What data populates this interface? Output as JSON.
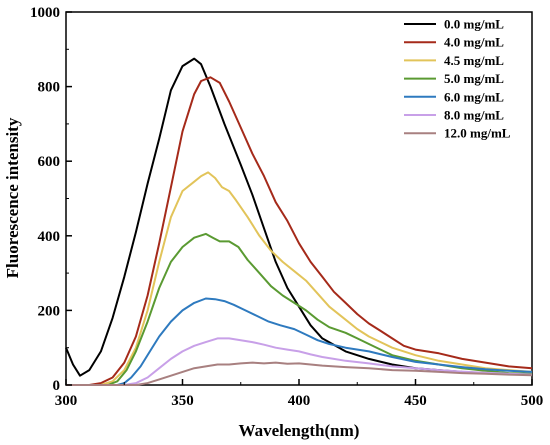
{
  "chart_data": {
    "type": "line",
    "title": "",
    "xlabel": "Wavelength(nm)",
    "ylabel": "Fluorescence intensity",
    "xlim": [
      300,
      500
    ],
    "ylim": [
      0,
      1000
    ],
    "xticks": [
      "300",
      "350",
      "400",
      "450",
      "500"
    ],
    "yticks": [
      "0",
      "200",
      "400",
      "600",
      "800",
      "1000"
    ],
    "grid": false,
    "legend_position": "top-right",
    "series": [
      {
        "name": "0.0 mg/mL",
        "color": "#000000",
        "points": [
          [
            300,
            100
          ],
          [
            303,
            55
          ],
          [
            306,
            25
          ],
          [
            310,
            40
          ],
          [
            315,
            90
          ],
          [
            320,
            180
          ],
          [
            325,
            290
          ],
          [
            330,
            410
          ],
          [
            335,
            540
          ],
          [
            340,
            660
          ],
          [
            345,
            790
          ],
          [
            350,
            855
          ],
          [
            355,
            875
          ],
          [
            358,
            860
          ],
          [
            362,
            800
          ],
          [
            368,
            700
          ],
          [
            375,
            590
          ],
          [
            380,
            510
          ],
          [
            385,
            420
          ],
          [
            390,
            330
          ],
          [
            395,
            260
          ],
          [
            400,
            210
          ],
          [
            405,
            160
          ],
          [
            410,
            125
          ],
          [
            420,
            90
          ],
          [
            430,
            70
          ],
          [
            440,
            55
          ],
          [
            450,
            45
          ],
          [
            460,
            40
          ],
          [
            470,
            35
          ],
          [
            480,
            32
          ],
          [
            490,
            30
          ],
          [
            500,
            28
          ]
        ]
      },
      {
        "name": "4.0 mg/mL",
        "color": "#a52a1a",
        "points": [
          [
            300,
            0
          ],
          [
            310,
            0
          ],
          [
            315,
            5
          ],
          [
            320,
            20
          ],
          [
            325,
            60
          ],
          [
            330,
            130
          ],
          [
            335,
            240
          ],
          [
            340,
            380
          ],
          [
            345,
            530
          ],
          [
            350,
            680
          ],
          [
            355,
            780
          ],
          [
            358,
            815
          ],
          [
            362,
            825
          ],
          [
            366,
            810
          ],
          [
            370,
            760
          ],
          [
            375,
            690
          ],
          [
            380,
            620
          ],
          [
            385,
            560
          ],
          [
            390,
            490
          ],
          [
            395,
            440
          ],
          [
            400,
            380
          ],
          [
            405,
            330
          ],
          [
            410,
            290
          ],
          [
            415,
            250
          ],
          [
            420,
            220
          ],
          [
            425,
            190
          ],
          [
            430,
            165
          ],
          [
            435,
            145
          ],
          [
            440,
            125
          ],
          [
            445,
            105
          ],
          [
            450,
            95
          ],
          [
            460,
            85
          ],
          [
            470,
            70
          ],
          [
            480,
            60
          ],
          [
            490,
            50
          ],
          [
            500,
            45
          ]
        ]
      },
      {
        "name": "4.5 mg/mL",
        "color": "#e2c45a",
        "points": [
          [
            300,
            0
          ],
          [
            315,
            0
          ],
          [
            320,
            10
          ],
          [
            325,
            40
          ],
          [
            330,
            100
          ],
          [
            335,
            200
          ],
          [
            340,
            330
          ],
          [
            345,
            450
          ],
          [
            350,
            520
          ],
          [
            355,
            545
          ],
          [
            358,
            560
          ],
          [
            361,
            570
          ],
          [
            364,
            555
          ],
          [
            367,
            530
          ],
          [
            370,
            520
          ],
          [
            373,
            495
          ],
          [
            378,
            450
          ],
          [
            383,
            400
          ],
          [
            388,
            360
          ],
          [
            393,
            330
          ],
          [
            398,
            305
          ],
          [
            403,
            280
          ],
          [
            408,
            245
          ],
          [
            413,
            210
          ],
          [
            420,
            175
          ],
          [
            425,
            150
          ],
          [
            430,
            130
          ],
          [
            435,
            115
          ],
          [
            440,
            100
          ],
          [
            450,
            80
          ],
          [
            460,
            65
          ],
          [
            470,
            55
          ],
          [
            480,
            45
          ],
          [
            490,
            40
          ],
          [
            500,
            35
          ]
        ]
      },
      {
        "name": "5.0 mg/mL",
        "color": "#5a9a32",
        "points": [
          [
            300,
            0
          ],
          [
            318,
            0
          ],
          [
            322,
            10
          ],
          [
            326,
            40
          ],
          [
            330,
            90
          ],
          [
            335,
            170
          ],
          [
            340,
            260
          ],
          [
            345,
            330
          ],
          [
            350,
            370
          ],
          [
            355,
            395
          ],
          [
            360,
            405
          ],
          [
            363,
            395
          ],
          [
            366,
            385
          ],
          [
            370,
            385
          ],
          [
            374,
            370
          ],
          [
            378,
            335
          ],
          [
            383,
            300
          ],
          [
            388,
            265
          ],
          [
            393,
            240
          ],
          [
            398,
            220
          ],
          [
            403,
            200
          ],
          [
            408,
            175
          ],
          [
            413,
            155
          ],
          [
            420,
            140
          ],
          [
            425,
            125
          ],
          [
            430,
            110
          ],
          [
            435,
            95
          ],
          [
            440,
            80
          ],
          [
            450,
            65
          ],
          [
            460,
            55
          ],
          [
            470,
            45
          ],
          [
            480,
            38
          ],
          [
            490,
            32
          ],
          [
            500,
            30
          ]
        ]
      },
      {
        "name": "6.0 mg/mL",
        "color": "#2e7abf",
        "points": [
          [
            300,
            0
          ],
          [
            322,
            0
          ],
          [
            325,
            5
          ],
          [
            328,
            20
          ],
          [
            332,
            50
          ],
          [
            336,
            90
          ],
          [
            340,
            130
          ],
          [
            345,
            170
          ],
          [
            350,
            200
          ],
          [
            355,
            220
          ],
          [
            360,
            232
          ],
          [
            364,
            230
          ],
          [
            368,
            225
          ],
          [
            372,
            215
          ],
          [
            377,
            200
          ],
          [
            382,
            185
          ],
          [
            387,
            170
          ],
          [
            392,
            160
          ],
          [
            398,
            150
          ],
          [
            403,
            135
          ],
          [
            408,
            120
          ],
          [
            413,
            110
          ],
          [
            420,
            100
          ],
          [
            430,
            90
          ],
          [
            440,
            75
          ],
          [
            450,
            62
          ],
          [
            460,
            55
          ],
          [
            470,
            48
          ],
          [
            480,
            42
          ],
          [
            490,
            38
          ],
          [
            500,
            35
          ]
        ]
      },
      {
        "name": "8.0 mg/mL",
        "color": "#c8a0e8",
        "points": [
          [
            300,
            0
          ],
          [
            325,
            0
          ],
          [
            330,
            5
          ],
          [
            335,
            20
          ],
          [
            340,
            45
          ],
          [
            345,
            70
          ],
          [
            350,
            90
          ],
          [
            355,
            105
          ],
          [
            360,
            115
          ],
          [
            365,
            125
          ],
          [
            370,
            125
          ],
          [
            375,
            120
          ],
          [
            380,
            115
          ],
          [
            385,
            108
          ],
          [
            390,
            100
          ],
          [
            395,
            95
          ],
          [
            400,
            90
          ],
          [
            405,
            82
          ],
          [
            410,
            75
          ],
          [
            415,
            70
          ],
          [
            420,
            65
          ],
          [
            430,
            58
          ],
          [
            440,
            50
          ],
          [
            450,
            45
          ],
          [
            460,
            40
          ],
          [
            470,
            36
          ],
          [
            480,
            33
          ],
          [
            490,
            30
          ],
          [
            500,
            28
          ]
        ]
      },
      {
        "name": "12.0 mg/mL",
        "color": "#a88080",
        "points": [
          [
            300,
            0
          ],
          [
            330,
            0
          ],
          [
            335,
            5
          ],
          [
            340,
            15
          ],
          [
            345,
            25
          ],
          [
            350,
            35
          ],
          [
            355,
            45
          ],
          [
            360,
            50
          ],
          [
            365,
            55
          ],
          [
            370,
            55
          ],
          [
            375,
            58
          ],
          [
            380,
            60
          ],
          [
            385,
            58
          ],
          [
            390,
            60
          ],
          [
            395,
            57
          ],
          [
            400,
            58
          ],
          [
            405,
            55
          ],
          [
            410,
            52
          ],
          [
            415,
            50
          ],
          [
            420,
            48
          ],
          [
            430,
            45
          ],
          [
            440,
            40
          ],
          [
            450,
            38
          ],
          [
            460,
            35
          ],
          [
            470,
            32
          ],
          [
            480,
            30
          ],
          [
            490,
            28
          ],
          [
            500,
            26
          ]
        ]
      }
    ]
  }
}
